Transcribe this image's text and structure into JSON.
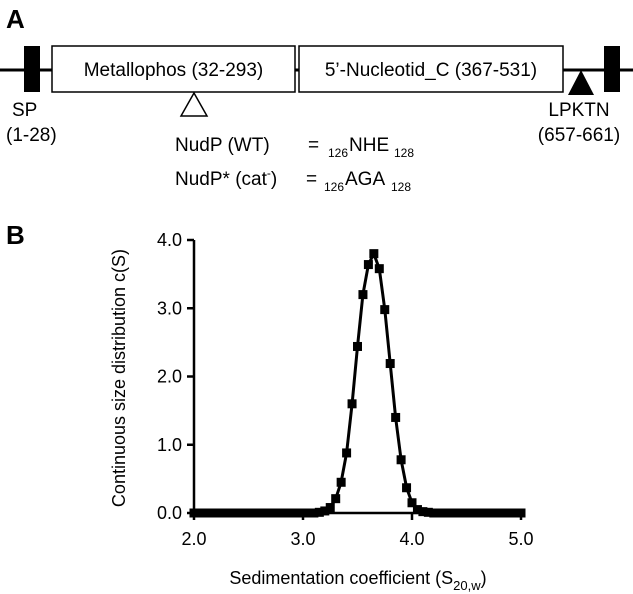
{
  "panel_a": {
    "letter": "A",
    "sp": {
      "name": "SP",
      "range": "(1-28)"
    },
    "domains": [
      {
        "name": "Metallophos (32-293)"
      },
      {
        "name": "5’-Nucleotid_C (367-531)"
      }
    ],
    "anchor": {
      "name": "LPKTN",
      "range": "(657-661)"
    },
    "mutants": [
      {
        "name": "NudP (WT)",
        "eq": "=",
        "pre": "126",
        "core": "NHE",
        "post": "128"
      },
      {
        "name": "NudP* (cat",
        "sup": "-",
        "close": ")",
        "eq": "=",
        "pre": "126",
        "core": "AGA",
        "post": "128"
      }
    ]
  },
  "panel_b": {
    "letter": "B",
    "chart_data": {
      "type": "line",
      "title": "",
      "xlabel_main": "Sedimentation coefficient (S",
      "xlabel_sub": "20,w",
      "xlabel_close": ")",
      "ylabel": "Continuous size distribution c(S)",
      "xlim": [
        2.0,
        5.0
      ],
      "ylim": [
        0.0,
        4.0
      ],
      "xticks": [
        "2.0",
        "3.0",
        "4.0",
        "5.0"
      ],
      "yticks": [
        "0.0",
        "1.0",
        "2.0",
        "3.0",
        "4.0"
      ],
      "grid": false,
      "x": [
        2.0,
        2.05,
        2.1,
        2.15,
        2.2,
        2.25,
        2.3,
        2.35,
        2.4,
        2.45,
        2.5,
        2.55,
        2.6,
        2.65,
        2.7,
        2.75,
        2.8,
        2.85,
        2.9,
        2.95,
        3.0,
        3.05,
        3.1,
        3.15,
        3.2,
        3.25,
        3.3,
        3.35,
        3.4,
        3.45,
        3.5,
        3.55,
        3.6,
        3.65,
        3.7,
        3.75,
        3.8,
        3.85,
        3.9,
        3.95,
        4.0,
        4.05,
        4.1,
        4.15,
        4.2,
        4.25,
        4.3,
        4.35,
        4.4,
        4.45,
        4.5,
        4.55,
        4.6,
        4.65,
        4.7,
        4.75,
        4.8,
        4.85,
        4.9,
        4.95,
        5.0
      ],
      "y": [
        0,
        0,
        0,
        0,
        0,
        0,
        0,
        0,
        0,
        0,
        0,
        0,
        0,
        0,
        0,
        0,
        0,
        0,
        0,
        0,
        0,
        0,
        0,
        0.01,
        0.03,
        0.08,
        0.21,
        0.45,
        0.88,
        1.6,
        2.44,
        3.2,
        3.64,
        3.8,
        3.58,
        2.98,
        2.19,
        1.4,
        0.78,
        0.37,
        0.15,
        0.05,
        0.02,
        0.01,
        0,
        0,
        0,
        0,
        0,
        0,
        0,
        0,
        0,
        0,
        0,
        0,
        0,
        0,
        0,
        0,
        0
      ]
    }
  }
}
